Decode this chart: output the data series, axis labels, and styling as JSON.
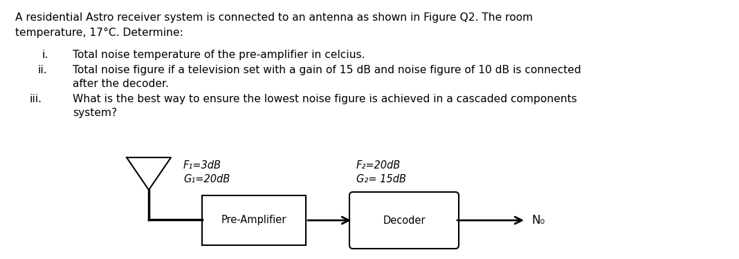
{
  "bg_color": "#ffffff",
  "text_color": "#000000",
  "line1": "A residential Astro receiver system is connected to an antenna as shown in Figure Q2. The room",
  "line2": "temperature, 17°C. Determine:",
  "item_i_roman": "i.",
  "item_i_text": "Total noise temperature of the pre-amplifier in celcius.",
  "item_ii_roman": "ii.",
  "item_ii_text1": "Total noise figure if a television set with a gain of 15 dB and noise figure of 10 dB is connected",
  "item_ii_text2": "after the decoder.",
  "item_iii_roman": "iii.",
  "item_iii_text1": "What is the best way to ensure the lowest noise figure is achieved in a cascaded components",
  "item_iii_text2": "system?",
  "preamp_label": "Pre-Amplifier",
  "decoder_label": "Decoder",
  "output_label": "N₀",
  "preamp_f": "F₁=3dB",
  "preamp_g": "G₁=20dB",
  "decoder_f": "F₂=20dB",
  "decoder_g": "G₂= 15dB",
  "font_size_body": 11.2,
  "font_size_diagram": 10.5,
  "font_size_no": 12
}
